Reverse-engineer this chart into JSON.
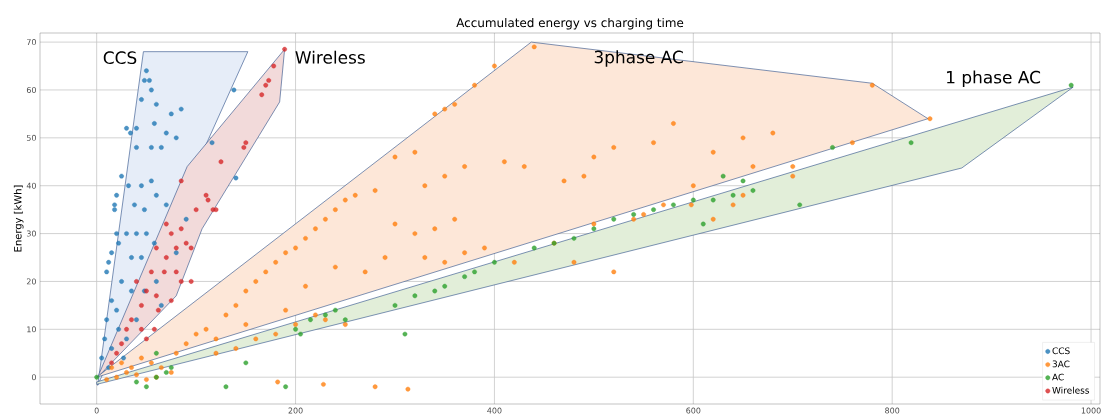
{
  "chart_data": {
    "type": "scatter",
    "title": "Accumulated energy vs charging time",
    "ylabel": "Energy  [kWh]",
    "xlim": [
      -57,
      1009
    ],
    "ylim": [
      -5.6,
      71.9
    ],
    "xticks": [
      0,
      200,
      400,
      600,
      800,
      1000
    ],
    "yticks": [
      0,
      10,
      20,
      30,
      40,
      50,
      60,
      70
    ],
    "grid": true,
    "legend": "bottom right",
    "series": [
      {
        "type": "area",
        "marker": "none",
        "name": "CCS",
        "color": "#e6edf8",
        "x": [
          1,
          47,
          152,
          1
        ],
        "values": [
          -1.7,
          68,
          68,
          -1.7
        ]
      },
      {
        "type": "area",
        "marker": "none",
        "name": "Wireless",
        "color": "#f2dada",
        "x": [
          1,
          91,
          189,
          184,
          106,
          80,
          1
        ],
        "values": [
          0,
          44,
          68.5,
          57.5,
          31,
          17,
          0
        ]
      },
      {
        "type": "area",
        "marker": "none",
        "name": "3phase AC",
        "color": "#fde7d8",
        "x": [
          0,
          437,
          780,
          836,
          0
        ],
        "values": [
          0,
          70,
          61.4,
          54,
          0
        ]
      },
      {
        "type": "area",
        "marker": "none",
        "name": "1 phase AC",
        "color": "#e2eed9",
        "x": [
          0,
          982,
          870,
          0
        ],
        "values": [
          -1,
          60.6,
          43.7,
          -1.5
        ]
      },
      {
        "name": "CCS",
        "marker": "circle",
        "color": "#1f77b4",
        "x": [
          50,
          53,
          48,
          55,
          45,
          60,
          75,
          85,
          138,
          140,
          58,
          30,
          34,
          40,
          70,
          80,
          40,
          55,
          65,
          20,
          18,
          25,
          32,
          45,
          55,
          60,
          38,
          48,
          70,
          116,
          10,
          12,
          15,
          20,
          22,
          30,
          40,
          50,
          58,
          35,
          45,
          25,
          35,
          15,
          20,
          10,
          8,
          15,
          5,
          12,
          60,
          48,
          65,
          22,
          30,
          90,
          80,
          40,
          27,
          18
        ],
        "values": [
          64,
          62,
          62,
          60,
          58,
          57,
          55,
          56,
          60,
          41.6,
          53,
          52,
          51,
          52,
          51,
          50,
          48,
          48,
          48,
          38,
          36,
          42,
          40,
          40,
          41,
          38,
          36,
          35,
          36,
          49,
          22,
          24,
          26,
          30,
          28,
          30,
          30,
          30,
          28,
          25,
          25,
          20,
          18,
          16,
          14,
          12,
          8,
          6,
          4,
          2,
          20,
          18,
          15,
          10,
          8,
          33,
          26,
          12,
          4,
          35
        ]
      },
      {
        "name": "3AC",
        "marker": "circle",
        "color": "#ff7f0e",
        "x": [
          10,
          20,
          30,
          40,
          50,
          60,
          15,
          25,
          35,
          45,
          55,
          65,
          75,
          80,
          90,
          100,
          110,
          120,
          130,
          140,
          150,
          160,
          170,
          180,
          190,
          200,
          210,
          220,
          230,
          240,
          250,
          260,
          280,
          300,
          320,
          340,
          350,
          360,
          380,
          400,
          440,
          780,
          838,
          182,
          228,
          280,
          313,
          220,
          230,
          250,
          120,
          140,
          160,
          180,
          200,
          150,
          190,
          210,
          240,
          270,
          290,
          330,
          350,
          370,
          390,
          320,
          300,
          340,
          360,
          330,
          350,
          370,
          410,
          430,
          470,
          490,
          500,
          520,
          560,
          580,
          620,
          650,
          680,
          700,
          660,
          600,
          550,
          500,
          460,
          420,
          480,
          520,
          540,
          570,
          598,
          620,
          640,
          650,
          700,
          760
        ],
        "values": [
          -0.5,
          0,
          1,
          0.5,
          -0.5,
          0,
          2,
          3,
          2,
          4,
          3,
          2,
          1,
          5,
          7,
          9,
          10,
          8,
          13,
          15,
          18,
          20,
          22,
          24,
          26,
          27,
          29,
          31,
          33,
          35,
          37,
          38,
          39,
          46,
          47,
          55,
          56,
          57,
          61,
          65,
          69,
          61,
          54,
          -1,
          -1.5,
          -2,
          -2.5,
          13,
          12,
          11,
          5,
          6,
          8,
          9,
          11,
          11,
          14,
          19,
          23,
          22,
          25,
          25,
          24,
          26,
          27,
          30,
          32,
          31,
          33,
          40,
          42,
          44,
          45,
          44,
          41,
          42,
          46,
          48,
          49,
          53,
          47,
          50,
          51,
          44,
          44,
          40,
          34,
          32,
          28,
          24,
          24,
          22,
          33,
          36,
          36,
          33,
          36,
          38,
          42,
          49
        ]
      },
      {
        "name": "AC",
        "marker": "circle",
        "color": "#2ca02c",
        "x": [
          0,
          40,
          50,
          60,
          70,
          75,
          60,
          130,
          150,
          190,
          205,
          215,
          230,
          240,
          200,
          250,
          310,
          300,
          320,
          340,
          350,
          370,
          380,
          400,
          440,
          460,
          480,
          500,
          520,
          540,
          560,
          580,
          600,
          620,
          640,
          660,
          707,
          610,
          630,
          650,
          740,
          819,
          980
        ],
        "values": [
          0,
          -1,
          -2,
          0,
          1,
          2,
          5,
          -2,
          3,
          -2,
          9,
          12,
          13,
          14,
          10,
          12,
          9,
          15,
          17,
          18,
          19,
          21,
          22,
          24,
          27,
          28,
          29,
          31,
          33,
          34,
          35,
          36,
          37,
          37,
          38,
          39,
          36,
          32,
          42,
          41,
          48,
          49,
          61
        ]
      },
      {
        "name": "Wireless",
        "marker": "circle",
        "color": "#d62728",
        "x": [
          189,
          178,
          173,
          170,
          166,
          150,
          148,
          125,
          85,
          110,
          112,
          117,
          120,
          100,
          70,
          75,
          85,
          90,
          95,
          80,
          60,
          70,
          68,
          80,
          85,
          95,
          55,
          50,
          60,
          75,
          62,
          58,
          45,
          50,
          35,
          30,
          25,
          20,
          15,
          40,
          45
        ],
        "values": [
          68.5,
          65,
          62,
          61,
          59,
          49,
          48,
          45,
          41,
          38,
          37,
          35,
          35,
          35,
          32,
          30,
          31,
          28,
          27,
          27,
          27,
          25,
          22,
          22,
          20,
          20,
          22,
          18,
          17,
          16,
          14,
          10,
          10,
          8,
          12,
          10,
          7,
          5,
          3,
          20,
          15
        ]
      }
    ]
  }
}
